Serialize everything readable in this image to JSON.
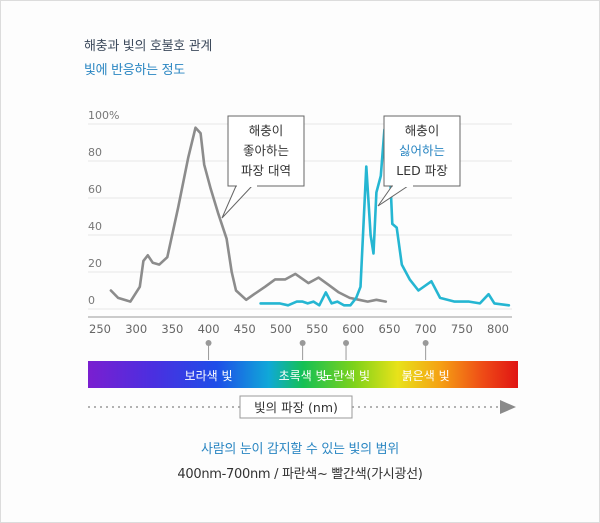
{
  "header": {
    "title": "해충과 빛의 호불호 관계",
    "subtitle": "빛에 반응하는 정도"
  },
  "chart_data": {
    "type": "line",
    "xlabel": "빛의 파장 (nm)",
    "ylabel": "",
    "xlim": [
      250,
      800
    ],
    "ylim": [
      0,
      100
    ],
    "x_ticks": [
      "250",
      "300",
      "350",
      "400",
      "450",
      "500",
      "550",
      "600",
      "650",
      "700",
      "750",
      "800"
    ],
    "y_ticks": [
      "0",
      "20",
      "40",
      "60",
      "80",
      "100%"
    ],
    "grid": true,
    "series": [
      {
        "color": "#8c8c8c",
        "points": [
          [
            265,
            10
          ],
          [
            275,
            6
          ],
          [
            292,
            4
          ],
          [
            305,
            12
          ],
          [
            310,
            26
          ],
          [
            316,
            29
          ],
          [
            323,
            25
          ],
          [
            332,
            24
          ],
          [
            343,
            28
          ],
          [
            358,
            55
          ],
          [
            372,
            82
          ],
          [
            382,
            98
          ],
          [
            389,
            95
          ],
          [
            394,
            78
          ],
          [
            403,
            65
          ],
          [
            413,
            52
          ],
          [
            425,
            38
          ],
          [
            432,
            20
          ],
          [
            438,
            10
          ],
          [
            452,
            5
          ],
          [
            463,
            8
          ],
          [
            478,
            12
          ],
          [
            492,
            16
          ],
          [
            506,
            16
          ],
          [
            520,
            19
          ],
          [
            538,
            14
          ],
          [
            552,
            17
          ],
          [
            566,
            13
          ],
          [
            580,
            9
          ],
          [
            595,
            6
          ],
          [
            608,
            5
          ],
          [
            620,
            4
          ],
          [
            632,
            5
          ],
          [
            645,
            4
          ]
        ]
      },
      {
        "color": "#25b6d2",
        "points": [
          [
            472,
            3
          ],
          [
            488,
            3
          ],
          [
            498,
            3
          ],
          [
            510,
            2
          ],
          [
            522,
            4
          ],
          [
            530,
            4
          ],
          [
            537,
            3
          ],
          [
            545,
            4
          ],
          [
            553,
            2
          ],
          [
            562,
            9
          ],
          [
            570,
            3
          ],
          [
            578,
            4
          ],
          [
            587,
            2
          ],
          [
            596,
            2
          ],
          [
            604,
            6
          ],
          [
            610,
            12
          ],
          [
            618,
            77
          ],
          [
            624,
            40
          ],
          [
            628,
            30
          ],
          [
            632,
            63
          ],
          [
            638,
            72
          ],
          [
            643,
            97
          ],
          [
            648,
            98
          ],
          [
            654,
            46
          ],
          [
            660,
            44
          ],
          [
            667,
            24
          ],
          [
            678,
            16
          ],
          [
            690,
            10
          ],
          [
            708,
            15
          ],
          [
            720,
            6
          ],
          [
            740,
            4
          ],
          [
            760,
            4
          ],
          [
            775,
            3
          ],
          [
            787,
            8
          ],
          [
            795,
            3
          ],
          [
            815,
            2
          ]
        ]
      }
    ],
    "annotations": [
      {
        "lines": [
          "해충이",
          "좋아하는",
          "파장 대역"
        ]
      },
      {
        "lines": [
          "해충이",
          "싫어하는",
          "LED 파장"
        ],
        "highlight_line": 1,
        "highlight_color": "#2a86c2"
      }
    ],
    "spectrum": {
      "labels": [
        {
          "text": "보라색 빛",
          "x": 400
        },
        {
          "text": "초록색 빛",
          "x": 530
        },
        {
          "text": "노란색 빛",
          "x": 590
        },
        {
          "text": "붉은색 빛",
          "x": 700
        }
      ]
    }
  },
  "caption": {
    "line1": "사람의 눈이 감지할 수 있는 빛의 범위",
    "line2": "400nm-700nm / 파란색~ 빨간색(가시광선)"
  }
}
